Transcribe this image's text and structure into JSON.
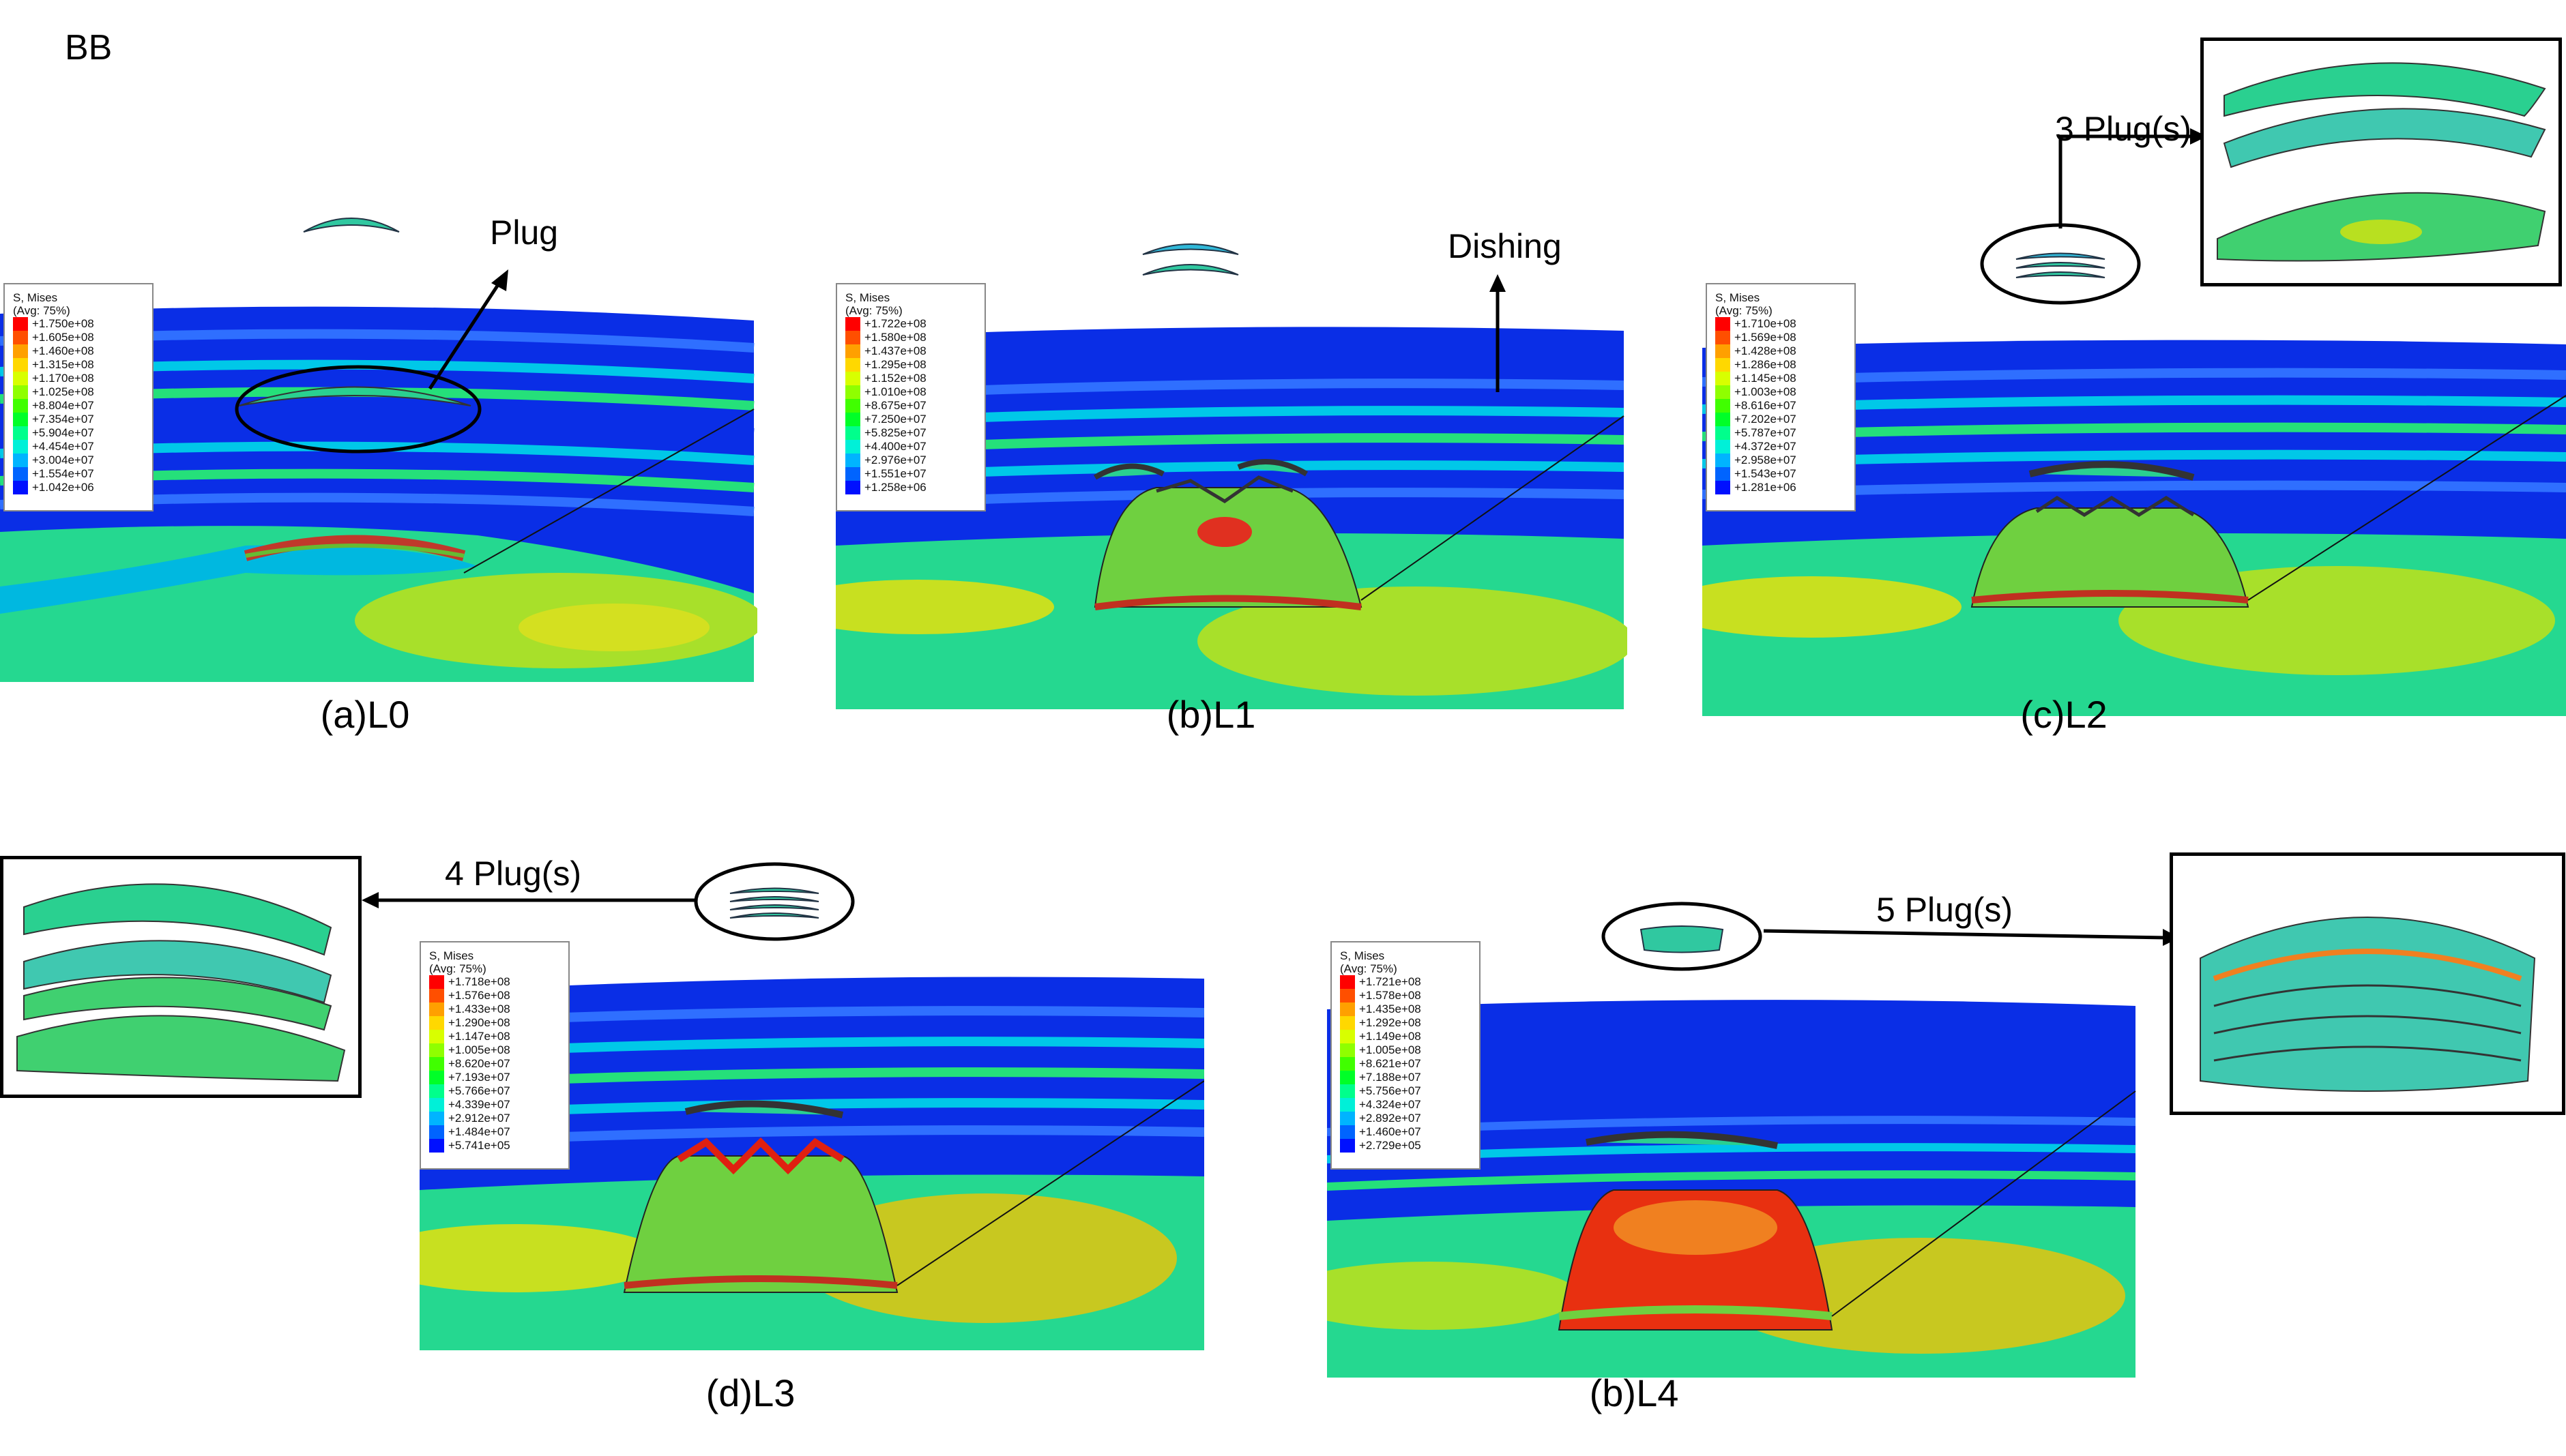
{
  "figure_label": "BB",
  "colors": {
    "legend": [
      "#ff0000",
      "#ff4f00",
      "#ffa000",
      "#ffd800",
      "#d8ff00",
      "#8fff00",
      "#40ff00",
      "#00ff28",
      "#00ff8c",
      "#00f0d8",
      "#00b4ff",
      "#0064ff",
      "#0010ff"
    ],
    "outer_band": "#0a2ee6",
    "accent": "#000000"
  },
  "panels": [
    {
      "caption": "(a)L0",
      "legend": {
        "header": [
          "S, Mises",
          "(Avg: 75%)"
        ],
        "values": [
          "+1.750e+08",
          "+1.605e+08",
          "+1.460e+08",
          "+1.315e+08",
          "+1.170e+08",
          "+1.025e+08",
          "+8.804e+07",
          "+7.354e+07",
          "+5.904e+07",
          "+4.454e+07",
          "+3.004e+07",
          "+1.554e+07",
          "+1.042e+06"
        ]
      }
    },
    {
      "caption": "(b)L1",
      "legend": {
        "header": [
          "S, Mises",
          "(Avg: 75%)"
        ],
        "values": [
          "+1.722e+08",
          "+1.580e+08",
          "+1.437e+08",
          "+1.295e+08",
          "+1.152e+08",
          "+1.010e+08",
          "+8.675e+07",
          "+7.250e+07",
          "+5.825e+07",
          "+4.400e+07",
          "+2.976e+07",
          "+1.551e+07",
          "+1.258e+06"
        ]
      }
    },
    {
      "caption": "(c)L2",
      "legend": {
        "header": [
          "S, Mises",
          "(Avg: 75%)"
        ],
        "values": [
          "+1.710e+08",
          "+1.569e+08",
          "+1.428e+08",
          "+1.286e+08",
          "+1.145e+08",
          "+1.003e+08",
          "+8.616e+07",
          "+7.202e+07",
          "+5.787e+07",
          "+4.372e+07",
          "+2.958e+07",
          "+1.543e+07",
          "+1.281e+06"
        ]
      }
    },
    {
      "caption": "(d)L3",
      "legend": {
        "header": [
          "S, Mises",
          "(Avg: 75%)"
        ],
        "values": [
          "+1.718e+08",
          "+1.576e+08",
          "+1.433e+08",
          "+1.290e+08",
          "+1.147e+08",
          "+1.005e+08",
          "+8.620e+07",
          "+7.193e+07",
          "+5.766e+07",
          "+4.339e+07",
          "+2.912e+07",
          "+1.484e+07",
          "+5.741e+05"
        ]
      }
    },
    {
      "caption": "(b)L4",
      "legend": {
        "header": [
          "S, Mises",
          "(Avg: 75%)"
        ],
        "values": [
          "+1.721e+08",
          "+1.578e+08",
          "+1.435e+08",
          "+1.292e+08",
          "+1.149e+08",
          "+1.005e+08",
          "+8.621e+07",
          "+7.188e+07",
          "+5.756e+07",
          "+4.324e+07",
          "+2.892e+07",
          "+1.460e+07",
          "+2.729e+05"
        ]
      }
    }
  ],
  "annotations": {
    "plug": "Plug",
    "dishing": "Dishing",
    "plugs_3": "3 Plug(s)",
    "plugs_4": "4 Plug(s)",
    "plugs_5": "5 Plug(s)"
  }
}
